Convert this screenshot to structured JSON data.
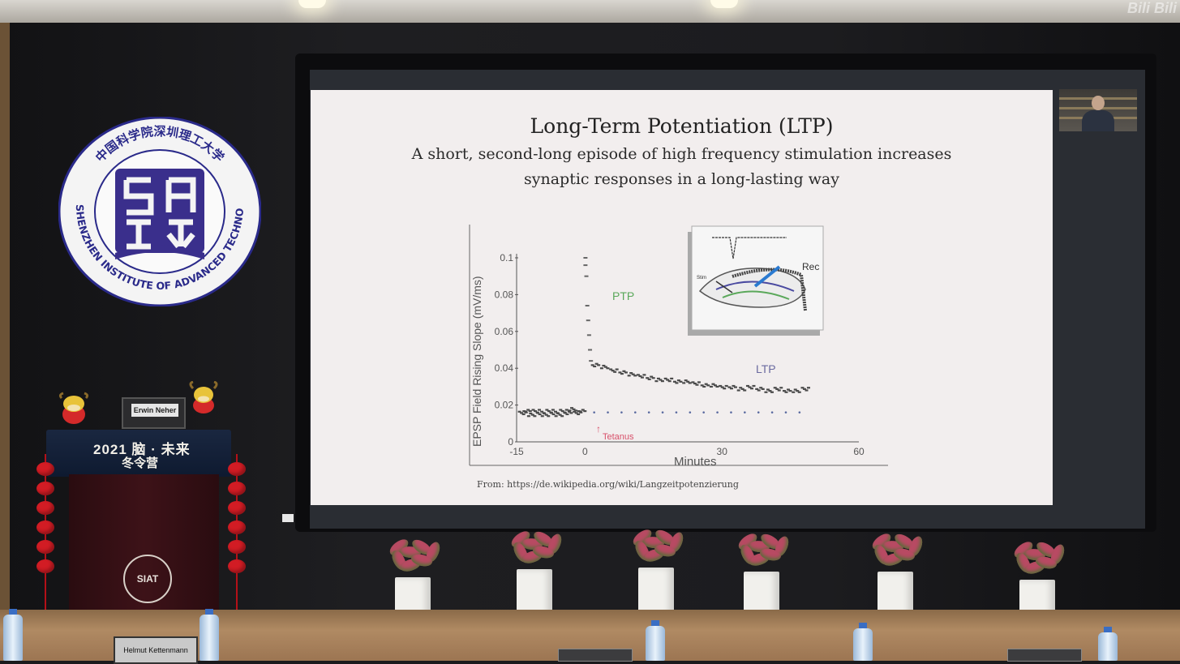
{
  "slide": {
    "title": "Long-Term Potentiation (LTP)",
    "subtitle_line1": "A short, second-long episode of high frequency stimulation increases",
    "subtitle_line2": "synaptic responses in a long-lasting way",
    "source": "From: https://de.wikipedia.org/wiki/Langzeitpotenzierung"
  },
  "plot": {
    "ylabel": "EPSP Field Rising Slope (mV/ms)",
    "xlabel": "Minutes",
    "y_ticks": [
      "0.1",
      "0.08",
      "0.06",
      "0.04",
      "0.02",
      "0"
    ],
    "x_ticks": [
      "-15",
      "0",
      "30",
      "60"
    ],
    "ptp_label": "PTP",
    "ltp_label": "LTP",
    "tetanus_label": "Tetanus",
    "rec_label": "Rec",
    "colors": {
      "ptp": "#5aa85a",
      "ltp": "#6a6aa0",
      "tetanus": "#d8506a"
    }
  },
  "chart_data": {
    "type": "scatter",
    "xlabel": "Minutes",
    "ylabel": "EPSP Field Rising Slope (mV/ms)",
    "xlim": [
      -15,
      60
    ],
    "ylim": [
      0,
      0.1
    ],
    "series": [
      {
        "values": [
          [
            -14,
            0.016
          ],
          [
            -13,
            0.017
          ],
          [
            -12,
            0.015
          ],
          [
            -11,
            0.017
          ],
          [
            -10,
            0.016
          ],
          [
            -9,
            0.015
          ],
          [
            -8,
            0.017
          ],
          [
            -7,
            0.016
          ],
          [
            -6,
            0.015
          ],
          [
            -5,
            0.017
          ],
          [
            -4,
            0.016
          ],
          [
            -3,
            0.018
          ],
          [
            -2,
            0.016
          ],
          [
            -1,
            0.017
          ],
          [
            0,
            0.1
          ],
          [
            0,
            0.096
          ],
          [
            0.2,
            0.09
          ],
          [
            0.4,
            0.074
          ],
          [
            0.6,
            0.066
          ],
          [
            0.8,
            0.058
          ],
          [
            1,
            0.05
          ],
          [
            1.2,
            0.044
          ],
          [
            2,
            0.042
          ],
          [
            4,
            0.041
          ],
          [
            6,
            0.039
          ],
          [
            8,
            0.038
          ],
          [
            10,
            0.037
          ],
          [
            12,
            0.036
          ],
          [
            14,
            0.035
          ],
          [
            16,
            0.034
          ],
          [
            18,
            0.034
          ],
          [
            20,
            0.033
          ],
          [
            22,
            0.033
          ],
          [
            24,
            0.032
          ],
          [
            26,
            0.031
          ],
          [
            28,
            0.031
          ],
          [
            30,
            0.03
          ],
          [
            32,
            0.03
          ],
          [
            34,
            0.029
          ],
          [
            36,
            0.03
          ],
          [
            38,
            0.029
          ],
          [
            40,
            0.028
          ],
          [
            42,
            0.029
          ],
          [
            44,
            0.028
          ],
          [
            46,
            0.028
          ],
          [
            48,
            0.029
          ]
        ]
      },
      {
        "values": [
          [
            2,
            0.016
          ],
          [
            5,
            0.016
          ],
          [
            8,
            0.016
          ],
          [
            11,
            0.016
          ],
          [
            14,
            0.016
          ],
          [
            17,
            0.016
          ],
          [
            20,
            0.016
          ],
          [
            23,
            0.016
          ],
          [
            26,
            0.016
          ],
          [
            29,
            0.016
          ],
          [
            32,
            0.016
          ],
          [
            35,
            0.016
          ],
          [
            38,
            0.016
          ],
          [
            41,
            0.016
          ],
          [
            44,
            0.016
          ],
          [
            47,
            0.016
          ]
        ]
      }
    ]
  },
  "room": {
    "logo_text_top": "中国科学院深圳理工大学",
    "logo_text_bottom": "CAS SHENZHEN INSTITUTE OF ADVANCED TECHNOLOGY",
    "podium_line1": "2021 脑 · 未来",
    "podium_line2": "冬令营",
    "podium_emblem": "SIAT",
    "laptop_name": "Erwin Neher",
    "name_plate": "Helmut Kettenmann",
    "watermark": "Bili Bili"
  }
}
